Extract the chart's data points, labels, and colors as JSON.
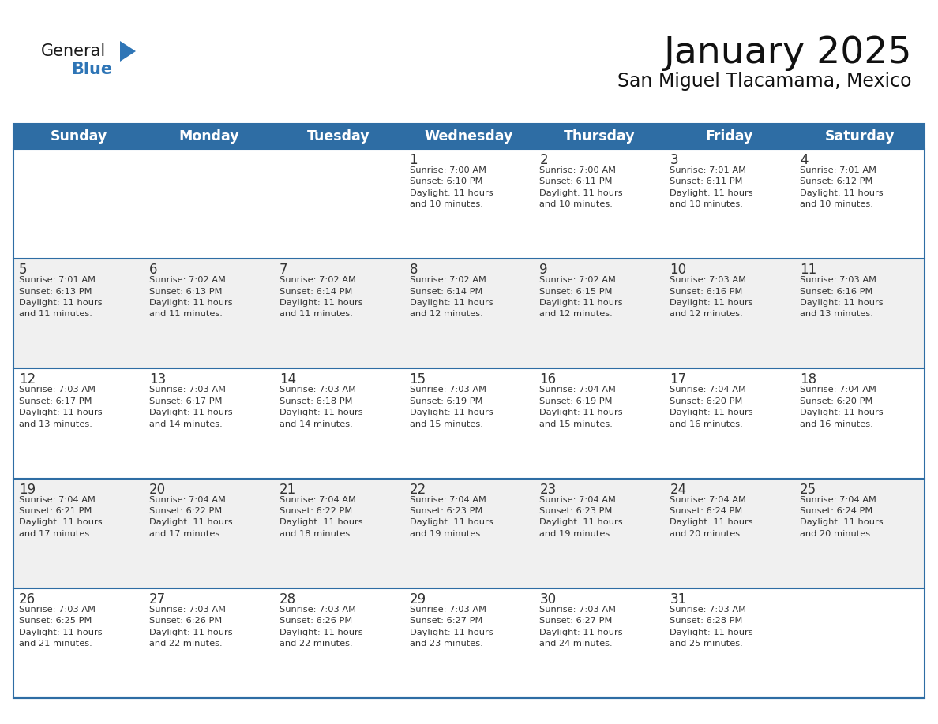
{
  "title": "January 2025",
  "subtitle": "San Miguel Tlacamama, Mexico",
  "header_color": "#2E6DA4",
  "header_text_color": "#FFFFFF",
  "border_color": "#2E6DA4",
  "row_border_color": "#2E6DA4",
  "text_color": "#333333",
  "info_text_color": "#333333",
  "alt_row_bg": "#F0F0F0",
  "white_bg": "#FFFFFF",
  "logo_color1": "#1a1a1a",
  "logo_color2": "#2E75B6",
  "days_of_week": [
    "Sunday",
    "Monday",
    "Tuesday",
    "Wednesday",
    "Thursday",
    "Friday",
    "Saturday"
  ],
  "calendar_data": [
    [
      {
        "day": "",
        "info": ""
      },
      {
        "day": "",
        "info": ""
      },
      {
        "day": "",
        "info": ""
      },
      {
        "day": "1",
        "info": "Sunrise: 7:00 AM\nSunset: 6:10 PM\nDaylight: 11 hours\nand 10 minutes."
      },
      {
        "day": "2",
        "info": "Sunrise: 7:00 AM\nSunset: 6:11 PM\nDaylight: 11 hours\nand 10 minutes."
      },
      {
        "day": "3",
        "info": "Sunrise: 7:01 AM\nSunset: 6:11 PM\nDaylight: 11 hours\nand 10 minutes."
      },
      {
        "day": "4",
        "info": "Sunrise: 7:01 AM\nSunset: 6:12 PM\nDaylight: 11 hours\nand 10 minutes."
      }
    ],
    [
      {
        "day": "5",
        "info": "Sunrise: 7:01 AM\nSunset: 6:13 PM\nDaylight: 11 hours\nand 11 minutes."
      },
      {
        "day": "6",
        "info": "Sunrise: 7:02 AM\nSunset: 6:13 PM\nDaylight: 11 hours\nand 11 minutes."
      },
      {
        "day": "7",
        "info": "Sunrise: 7:02 AM\nSunset: 6:14 PM\nDaylight: 11 hours\nand 11 minutes."
      },
      {
        "day": "8",
        "info": "Sunrise: 7:02 AM\nSunset: 6:14 PM\nDaylight: 11 hours\nand 12 minutes."
      },
      {
        "day": "9",
        "info": "Sunrise: 7:02 AM\nSunset: 6:15 PM\nDaylight: 11 hours\nand 12 minutes."
      },
      {
        "day": "10",
        "info": "Sunrise: 7:03 AM\nSunset: 6:16 PM\nDaylight: 11 hours\nand 12 minutes."
      },
      {
        "day": "11",
        "info": "Sunrise: 7:03 AM\nSunset: 6:16 PM\nDaylight: 11 hours\nand 13 minutes."
      }
    ],
    [
      {
        "day": "12",
        "info": "Sunrise: 7:03 AM\nSunset: 6:17 PM\nDaylight: 11 hours\nand 13 minutes."
      },
      {
        "day": "13",
        "info": "Sunrise: 7:03 AM\nSunset: 6:17 PM\nDaylight: 11 hours\nand 14 minutes."
      },
      {
        "day": "14",
        "info": "Sunrise: 7:03 AM\nSunset: 6:18 PM\nDaylight: 11 hours\nand 14 minutes."
      },
      {
        "day": "15",
        "info": "Sunrise: 7:03 AM\nSunset: 6:19 PM\nDaylight: 11 hours\nand 15 minutes."
      },
      {
        "day": "16",
        "info": "Sunrise: 7:04 AM\nSunset: 6:19 PM\nDaylight: 11 hours\nand 15 minutes."
      },
      {
        "day": "17",
        "info": "Sunrise: 7:04 AM\nSunset: 6:20 PM\nDaylight: 11 hours\nand 16 minutes."
      },
      {
        "day": "18",
        "info": "Sunrise: 7:04 AM\nSunset: 6:20 PM\nDaylight: 11 hours\nand 16 minutes."
      }
    ],
    [
      {
        "day": "19",
        "info": "Sunrise: 7:04 AM\nSunset: 6:21 PM\nDaylight: 11 hours\nand 17 minutes."
      },
      {
        "day": "20",
        "info": "Sunrise: 7:04 AM\nSunset: 6:22 PM\nDaylight: 11 hours\nand 17 minutes."
      },
      {
        "day": "21",
        "info": "Sunrise: 7:04 AM\nSunset: 6:22 PM\nDaylight: 11 hours\nand 18 minutes."
      },
      {
        "day": "22",
        "info": "Sunrise: 7:04 AM\nSunset: 6:23 PM\nDaylight: 11 hours\nand 19 minutes."
      },
      {
        "day": "23",
        "info": "Sunrise: 7:04 AM\nSunset: 6:23 PM\nDaylight: 11 hours\nand 19 minutes."
      },
      {
        "day": "24",
        "info": "Sunrise: 7:04 AM\nSunset: 6:24 PM\nDaylight: 11 hours\nand 20 minutes."
      },
      {
        "day": "25",
        "info": "Sunrise: 7:04 AM\nSunset: 6:24 PM\nDaylight: 11 hours\nand 20 minutes."
      }
    ],
    [
      {
        "day": "26",
        "info": "Sunrise: 7:03 AM\nSunset: 6:25 PM\nDaylight: 11 hours\nand 21 minutes."
      },
      {
        "day": "27",
        "info": "Sunrise: 7:03 AM\nSunset: 6:26 PM\nDaylight: 11 hours\nand 22 minutes."
      },
      {
        "day": "28",
        "info": "Sunrise: 7:03 AM\nSunset: 6:26 PM\nDaylight: 11 hours\nand 22 minutes."
      },
      {
        "day": "29",
        "info": "Sunrise: 7:03 AM\nSunset: 6:27 PM\nDaylight: 11 hours\nand 23 minutes."
      },
      {
        "day": "30",
        "info": "Sunrise: 7:03 AM\nSunset: 6:27 PM\nDaylight: 11 hours\nand 24 minutes."
      },
      {
        "day": "31",
        "info": "Sunrise: 7:03 AM\nSunset: 6:28 PM\nDaylight: 11 hours\nand 25 minutes."
      },
      {
        "day": "",
        "info": ""
      }
    ]
  ]
}
